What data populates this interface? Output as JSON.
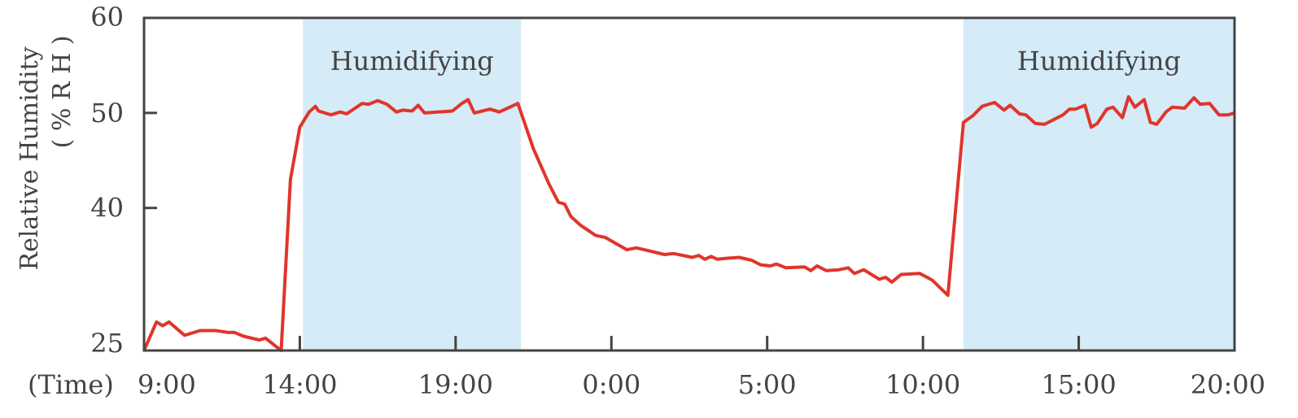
{
  "chart_data": {
    "type": "line",
    "title": "",
    "xlabel": "(Time)",
    "ylabel": "Relative Humidity",
    "ylabel_unit": "( % R H )",
    "ylim": [
      25,
      60
    ],
    "xlim": [
      9,
      44
    ],
    "yticks": [
      25,
      40,
      50,
      60
    ],
    "xticks": [
      {
        "x": 9,
        "label": "9:00"
      },
      {
        "x": 14,
        "label": "14:00"
      },
      {
        "x": 19,
        "label": "19:00"
      },
      {
        "x": 24,
        "label": "0:00"
      },
      {
        "x": 29,
        "label": "5:00"
      },
      {
        "x": 34,
        "label": "10:00"
      },
      {
        "x": 39,
        "label": "15:00"
      },
      {
        "x": 44,
        "label": "20:00"
      }
    ],
    "grid": false,
    "colors": {
      "line": "#e0352b",
      "band": "#d5ebf7",
      "axis": "#444444"
    },
    "bands": [
      {
        "start": 14.1,
        "end": 21.1,
        "label": "Humidifying"
      },
      {
        "start": 35.3,
        "end": 44.0,
        "label": "Humidifying"
      }
    ],
    "series": [
      {
        "points": [
          [
            9.0,
            25.0
          ],
          [
            9.4,
            28.0
          ],
          [
            9.6,
            27.6
          ],
          [
            9.8,
            28.0
          ],
          [
            10.3,
            26.6
          ],
          [
            10.8,
            27.1
          ],
          [
            11.3,
            27.1
          ],
          [
            11.7,
            26.9
          ],
          [
            11.9,
            26.9
          ],
          [
            12.2,
            26.5
          ],
          [
            12.7,
            26.1
          ],
          [
            12.9,
            26.3
          ],
          [
            13.4,
            25.0
          ],
          [
            13.7,
            43.0
          ],
          [
            14.0,
            48.5
          ],
          [
            14.3,
            50.1
          ],
          [
            14.5,
            50.7
          ],
          [
            14.6,
            50.2
          ],
          [
            15.0,
            49.8
          ],
          [
            15.3,
            50.1
          ],
          [
            15.5,
            49.9
          ],
          [
            16.0,
            51.0
          ],
          [
            16.2,
            50.9
          ],
          [
            16.5,
            51.3
          ],
          [
            16.8,
            50.9
          ],
          [
            17.1,
            50.1
          ],
          [
            17.3,
            50.3
          ],
          [
            17.6,
            50.2
          ],
          [
            17.8,
            50.8
          ],
          [
            18.0,
            50.0
          ],
          [
            18.9,
            50.2
          ],
          [
            19.2,
            51.0
          ],
          [
            19.4,
            51.4
          ],
          [
            19.6,
            50.0
          ],
          [
            20.1,
            50.4
          ],
          [
            20.4,
            50.1
          ],
          [
            21.0,
            51.0
          ],
          [
            21.5,
            46.2
          ],
          [
            22.0,
            42.5
          ],
          [
            22.3,
            40.6
          ],
          [
            22.5,
            40.4
          ],
          [
            22.7,
            39.1
          ],
          [
            23.0,
            38.2
          ],
          [
            23.5,
            37.1
          ],
          [
            23.8,
            36.9
          ],
          [
            24.5,
            35.6
          ],
          [
            24.8,
            35.8
          ],
          [
            25.2,
            35.5
          ],
          [
            25.7,
            35.1
          ],
          [
            26.0,
            35.2
          ],
          [
            26.6,
            34.8
          ],
          [
            26.8,
            35.0
          ],
          [
            27.0,
            34.6
          ],
          [
            27.2,
            34.9
          ],
          [
            27.4,
            34.6
          ],
          [
            27.7,
            34.7
          ],
          [
            28.1,
            34.8
          ],
          [
            28.5,
            34.5
          ],
          [
            28.8,
            34.0
          ],
          [
            29.1,
            33.9
          ],
          [
            29.3,
            34.1
          ],
          [
            29.6,
            33.7
          ],
          [
            30.2,
            33.8
          ],
          [
            30.4,
            33.4
          ],
          [
            30.6,
            33.9
          ],
          [
            30.9,
            33.4
          ],
          [
            31.3,
            33.5
          ],
          [
            31.6,
            33.7
          ],
          [
            31.8,
            33.1
          ],
          [
            32.1,
            33.5
          ],
          [
            32.6,
            32.5
          ],
          [
            32.8,
            32.7
          ],
          [
            33.0,
            32.2
          ],
          [
            33.3,
            33.0
          ],
          [
            33.9,
            33.1
          ],
          [
            34.3,
            32.4
          ],
          [
            34.8,
            30.8
          ],
          [
            35.3,
            49.0
          ],
          [
            35.6,
            49.7
          ],
          [
            35.9,
            50.7
          ],
          [
            36.3,
            51.1
          ],
          [
            36.6,
            50.3
          ],
          [
            36.8,
            50.8
          ],
          [
            37.1,
            49.9
          ],
          [
            37.3,
            49.8
          ],
          [
            37.6,
            48.9
          ],
          [
            37.9,
            48.8
          ],
          [
            38.5,
            49.8
          ],
          [
            38.7,
            50.4
          ],
          [
            38.9,
            50.4
          ],
          [
            39.2,
            50.8
          ],
          [
            39.4,
            48.5
          ],
          [
            39.6,
            48.9
          ],
          [
            39.9,
            50.4
          ],
          [
            40.1,
            50.6
          ],
          [
            40.4,
            49.5
          ],
          [
            40.6,
            51.7
          ],
          [
            40.8,
            50.6
          ],
          [
            41.1,
            51.4
          ],
          [
            41.3,
            49.0
          ],
          [
            41.5,
            48.8
          ],
          [
            41.8,
            50.1
          ],
          [
            42.0,
            50.6
          ],
          [
            42.4,
            50.5
          ],
          [
            42.7,
            51.6
          ],
          [
            42.9,
            50.9
          ],
          [
            43.2,
            51.0
          ],
          [
            43.5,
            49.8
          ],
          [
            43.8,
            49.8
          ],
          [
            44.0,
            50.0
          ]
        ]
      }
    ]
  }
}
